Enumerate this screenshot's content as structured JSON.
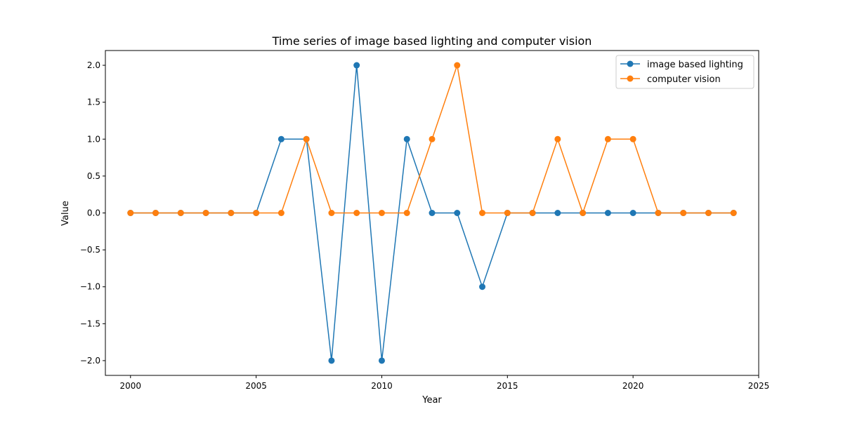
{
  "chart_data": {
    "type": "line",
    "title": "Time series of image based lighting and computer vision",
    "xlabel": "Year",
    "ylabel": "Value",
    "xlim": [
      1999,
      2025
    ],
    "ylim": [
      -2.2,
      2.2
    ],
    "x": [
      2000,
      2001,
      2002,
      2003,
      2004,
      2005,
      2006,
      2007,
      2008,
      2009,
      2010,
      2011,
      2012,
      2013,
      2014,
      2015,
      2016,
      2017,
      2018,
      2019,
      2020,
      2021,
      2022,
      2023,
      2024
    ],
    "xticks": [
      2000,
      2005,
      2010,
      2015,
      2020,
      2025
    ],
    "xtick_labels": [
      "2000",
      "2005",
      "2010",
      "2015",
      "2020",
      "2025"
    ],
    "yticks": [
      -2.0,
      -1.5,
      -1.0,
      -0.5,
      0.0,
      0.5,
      1.0,
      1.5,
      2.0
    ],
    "ytick_labels": [
      "−2.0",
      "−1.5",
      "−1.0",
      "−0.5",
      "0.0",
      "0.5",
      "1.0",
      "1.5",
      "2.0"
    ],
    "grid": false,
    "legend_position": "top-right",
    "series": [
      {
        "name": "image based lighting",
        "color": "#1f77b4",
        "values": [
          0,
          0,
          0,
          0,
          0,
          0,
          1,
          1,
          -2,
          2,
          -2,
          1,
          0,
          0,
          -1,
          0,
          0,
          0,
          0,
          0,
          0,
          0,
          0,
          0,
          0
        ]
      },
      {
        "name": "computer vision",
        "color": "#ff7f0e",
        "values": [
          0,
          0,
          0,
          0,
          0,
          0,
          0,
          1,
          0,
          0,
          0,
          0,
          1,
          2,
          0,
          0,
          0,
          1,
          0,
          1,
          1,
          0,
          0,
          0,
          0
        ]
      }
    ]
  }
}
